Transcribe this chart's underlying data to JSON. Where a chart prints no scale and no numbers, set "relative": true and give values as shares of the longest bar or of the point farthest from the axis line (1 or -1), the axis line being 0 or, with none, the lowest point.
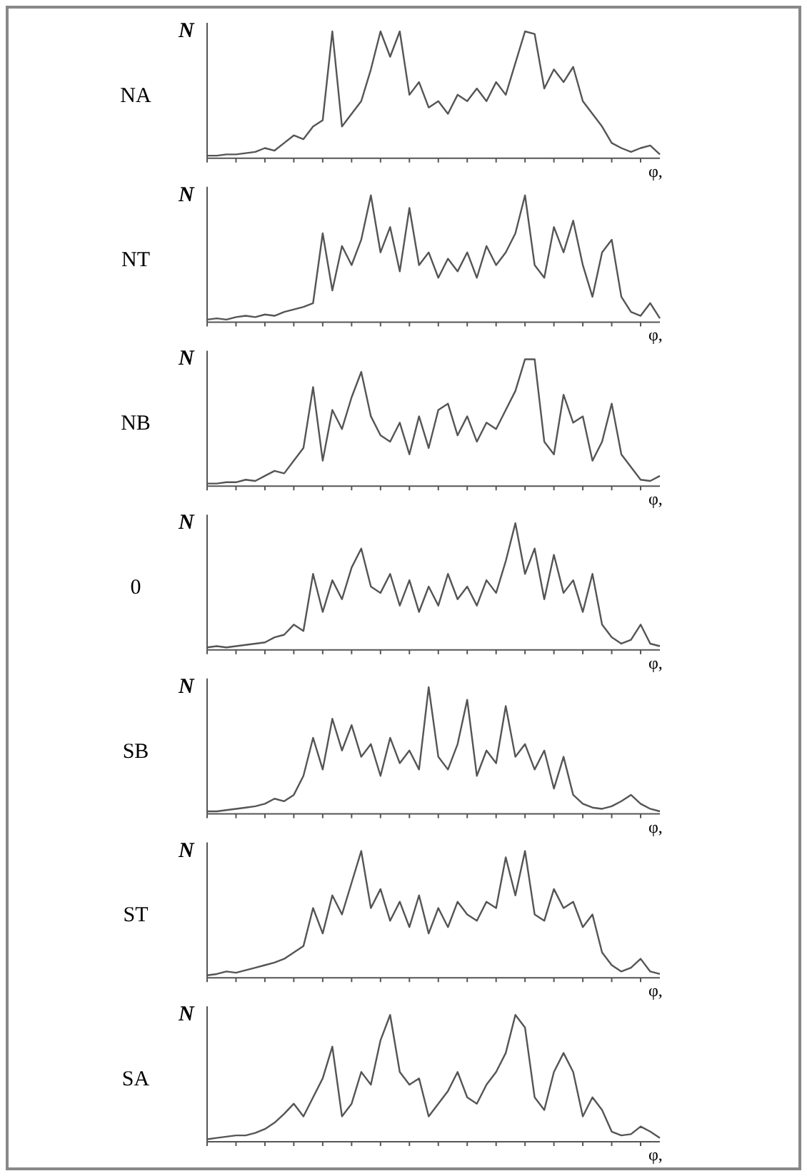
{
  "chart_data": [
    {
      "type": "line",
      "title": "NA",
      "ylabel": "N",
      "xlabel": "φ,",
      "relative": true,
      "categories": [
        null,
        null,
        null,
        null,
        null,
        null,
        null,
        null,
        null,
        null,
        null,
        null,
        null,
        null,
        null,
        null,
        null,
        null,
        null,
        null,
        null,
        null,
        null,
        null,
        null,
        null,
        null,
        null,
        null,
        null,
        null,
        null,
        null,
        null,
        null,
        null,
        null,
        null,
        null,
        null,
        null,
        null,
        null,
        null,
        null,
        null,
        null,
        null
      ],
      "series": [
        {
          "color": "#555555",
          "values": [
            0.02,
            0.02,
            0.03,
            0.03,
            0.04,
            0.05,
            0.08,
            0.06,
            0.12,
            0.18,
            0.15,
            0.25,
            0.3,
            1.0,
            0.25,
            0.35,
            0.45,
            0.7,
            1.0,
            0.8,
            1.0,
            0.5,
            0.6,
            0.4,
            0.45,
            0.35,
            0.5,
            0.45,
            0.55,
            0.45,
            0.6,
            0.5,
            0.75,
            1.0,
            0.98,
            0.55,
            0.7,
            0.6,
            0.72,
            0.45,
            0.35,
            0.25,
            0.12,
            0.08,
            0.05,
            0.08,
            0.1,
            0.03
          ]
        }
      ]
    },
    {
      "type": "line",
      "title": "NT",
      "ylabel": "N",
      "xlabel": "φ,",
      "relative": true,
      "categories": [
        null,
        null,
        null,
        null,
        null,
        null,
        null,
        null,
        null,
        null,
        null,
        null,
        null,
        null,
        null,
        null,
        null,
        null,
        null,
        null,
        null,
        null,
        null,
        null,
        null,
        null,
        null,
        null,
        null,
        null,
        null,
        null,
        null,
        null,
        null,
        null,
        null,
        null,
        null,
        null,
        null,
        null,
        null,
        null,
        null,
        null,
        null,
        null
      ],
      "series": [
        {
          "color": "#555555",
          "values": [
            0.02,
            0.03,
            0.02,
            0.04,
            0.05,
            0.04,
            0.06,
            0.05,
            0.08,
            0.1,
            0.12,
            0.15,
            0.7,
            0.25,
            0.6,
            0.45,
            0.65,
            1.0,
            0.55,
            0.75,
            0.4,
            0.9,
            0.45,
            0.55,
            0.35,
            0.5,
            0.4,
            0.55,
            0.35,
            0.6,
            0.45,
            0.55,
            0.7,
            1.0,
            0.45,
            0.35,
            0.75,
            0.55,
            0.8,
            0.45,
            0.2,
            0.55,
            0.65,
            0.2,
            0.08,
            0.05,
            0.15,
            0.03
          ]
        }
      ]
    },
    {
      "type": "line",
      "title": "NB",
      "ylabel": "N",
      "xlabel": "φ,",
      "relative": true,
      "categories": [
        null,
        null,
        null,
        null,
        null,
        null,
        null,
        null,
        null,
        null,
        null,
        null,
        null,
        null,
        null,
        null,
        null,
        null,
        null,
        null,
        null,
        null,
        null,
        null,
        null,
        null,
        null,
        null,
        null,
        null,
        null,
        null,
        null,
        null,
        null,
        null,
        null,
        null,
        null,
        null,
        null,
        null,
        null,
        null,
        null,
        null,
        null,
        null
      ],
      "series": [
        {
          "color": "#555555",
          "values": [
            0.02,
            0.02,
            0.03,
            0.03,
            0.05,
            0.04,
            0.08,
            0.12,
            0.1,
            0.2,
            0.3,
            0.78,
            0.2,
            0.6,
            0.45,
            0.7,
            0.9,
            0.55,
            0.4,
            0.35,
            0.5,
            0.25,
            0.55,
            0.3,
            0.6,
            0.65,
            0.4,
            0.55,
            0.35,
            0.5,
            0.45,
            0.6,
            0.75,
            1.0,
            1.0,
            0.35,
            0.25,
            0.72,
            0.5,
            0.55,
            0.2,
            0.35,
            0.65,
            0.25,
            0.15,
            0.05,
            0.04,
            0.08
          ]
        }
      ]
    },
    {
      "type": "line",
      "title": "0",
      "ylabel": "N",
      "xlabel": "φ,",
      "relative": true,
      "categories": [
        null,
        null,
        null,
        null,
        null,
        null,
        null,
        null,
        null,
        null,
        null,
        null,
        null,
        null,
        null,
        null,
        null,
        null,
        null,
        null,
        null,
        null,
        null,
        null,
        null,
        null,
        null,
        null,
        null,
        null,
        null,
        null,
        null,
        null,
        null,
        null,
        null,
        null,
        null,
        null,
        null,
        null,
        null,
        null,
        null,
        null,
        null,
        null
      ],
      "series": [
        {
          "color": "#555555",
          "values": [
            0.02,
            0.03,
            0.02,
            0.03,
            0.04,
            0.05,
            0.06,
            0.1,
            0.12,
            0.2,
            0.15,
            0.6,
            0.3,
            0.55,
            0.4,
            0.65,
            0.8,
            0.5,
            0.45,
            0.6,
            0.35,
            0.55,
            0.3,
            0.5,
            0.35,
            0.6,
            0.4,
            0.5,
            0.35,
            0.55,
            0.45,
            0.7,
            1.0,
            0.6,
            0.8,
            0.4,
            0.75,
            0.45,
            0.55,
            0.3,
            0.6,
            0.2,
            0.1,
            0.05,
            0.08,
            0.2,
            0.05,
            0.03
          ]
        }
      ]
    },
    {
      "type": "line",
      "title": "SB",
      "ylabel": "N",
      "xlabel": "φ,",
      "relative": true,
      "categories": [
        null,
        null,
        null,
        null,
        null,
        null,
        null,
        null,
        null,
        null,
        null,
        null,
        null,
        null,
        null,
        null,
        null,
        null,
        null,
        null,
        null,
        null,
        null,
        null,
        null,
        null,
        null,
        null,
        null,
        null,
        null,
        null,
        null,
        null,
        null,
        null,
        null,
        null,
        null,
        null,
        null,
        null,
        null,
        null,
        null,
        null,
        null,
        null
      ],
      "series": [
        {
          "color": "#555555",
          "values": [
            0.02,
            0.02,
            0.03,
            0.04,
            0.05,
            0.06,
            0.08,
            0.12,
            0.1,
            0.15,
            0.3,
            0.6,
            0.35,
            0.75,
            0.5,
            0.7,
            0.45,
            0.55,
            0.3,
            0.6,
            0.4,
            0.5,
            0.35,
            1.0,
            0.45,
            0.35,
            0.55,
            0.9,
            0.3,
            0.5,
            0.4,
            0.85,
            0.45,
            0.55,
            0.35,
            0.5,
            0.2,
            0.45,
            0.15,
            0.08,
            0.05,
            0.04,
            0.06,
            0.1,
            0.15,
            0.08,
            0.04,
            0.02
          ]
        }
      ]
    },
    {
      "type": "line",
      "title": "ST",
      "ylabel": "N",
      "xlabel": "φ,",
      "relative": true,
      "categories": [
        null,
        null,
        null,
        null,
        null,
        null,
        null,
        null,
        null,
        null,
        null,
        null,
        null,
        null,
        null,
        null,
        null,
        null,
        null,
        null,
        null,
        null,
        null,
        null,
        null,
        null,
        null,
        null,
        null,
        null,
        null,
        null,
        null,
        null,
        null,
        null,
        null,
        null,
        null,
        null,
        null,
        null,
        null,
        null,
        null,
        null,
        null,
        null
      ],
      "series": [
        {
          "color": "#555555",
          "values": [
            0.02,
            0.03,
            0.05,
            0.04,
            0.06,
            0.08,
            0.1,
            0.12,
            0.15,
            0.2,
            0.25,
            0.55,
            0.35,
            0.65,
            0.5,
            0.75,
            1.0,
            0.55,
            0.7,
            0.45,
            0.6,
            0.4,
            0.65,
            0.35,
            0.55,
            0.4,
            0.6,
            0.5,
            0.45,
            0.6,
            0.55,
            0.95,
            0.65,
            1.0,
            0.5,
            0.45,
            0.7,
            0.55,
            0.6,
            0.4,
            0.5,
            0.2,
            0.1,
            0.05,
            0.08,
            0.15,
            0.05,
            0.03
          ]
        }
      ]
    },
    {
      "type": "line",
      "title": "SA",
      "ylabel": "N",
      "xlabel": "φ,",
      "relative": true,
      "categories": [
        null,
        null,
        null,
        null,
        null,
        null,
        null,
        null,
        null,
        null,
        null,
        null,
        null,
        null,
        null,
        null,
        null,
        null,
        null,
        null,
        null,
        null,
        null,
        null,
        null,
        null,
        null,
        null,
        null,
        null,
        null,
        null,
        null,
        null,
        null,
        null,
        null,
        null,
        null,
        null,
        null,
        null,
        null,
        null,
        null,
        null,
        null,
        null
      ],
      "series": [
        {
          "color": "#555555",
          "values": [
            0.02,
            0.03,
            0.04,
            0.05,
            0.05,
            0.07,
            0.1,
            0.15,
            0.22,
            0.3,
            0.2,
            0.35,
            0.5,
            0.75,
            0.2,
            0.3,
            0.55,
            0.45,
            0.8,
            1.0,
            0.55,
            0.45,
            0.5,
            0.2,
            0.3,
            0.4,
            0.55,
            0.35,
            0.3,
            0.45,
            0.55,
            0.7,
            1.0,
            0.9,
            0.35,
            0.25,
            0.55,
            0.7,
            0.55,
            0.2,
            0.35,
            0.25,
            0.08,
            0.05,
            0.06,
            0.12,
            0.08,
            0.03
          ]
        }
      ]
    }
  ]
}
